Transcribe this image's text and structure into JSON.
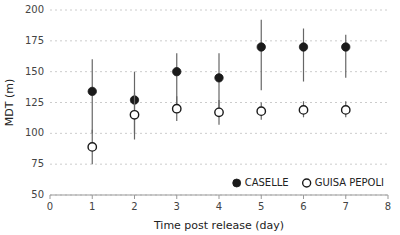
{
  "chart_data": {
    "type": "scatter",
    "x_label": "Time post release (day)",
    "y_label": "MDT (m)",
    "x": [
      1,
      2,
      3,
      4,
      5,
      6,
      7
    ],
    "series": [
      {
        "name": "CASELLE",
        "color": "#1a1a1a",
        "marker": "filled",
        "values": [
          134,
          127,
          150,
          145,
          170,
          170,
          170
        ],
        "error_low": [
          34,
          27,
          30,
          25,
          35,
          28,
          25
        ],
        "error_high": [
          26,
          23,
          15,
          20,
          22,
          15,
          10
        ]
      },
      {
        "name": "GUISA PEPOLI",
        "color": "#1a1a1a",
        "marker": "open",
        "values": [
          89,
          115,
          120,
          117,
          118,
          119,
          119
        ],
        "error_low": [
          14,
          20,
          10,
          10,
          7,
          6,
          6
        ],
        "error_high": [
          14,
          18,
          10,
          10,
          7,
          7,
          7
        ]
      }
    ],
    "xlim": [
      0,
      8
    ],
    "ylim": [
      50,
      200
    ],
    "xticks": [
      0,
      1,
      2,
      3,
      4,
      5,
      6,
      7,
      8
    ],
    "yticks": [
      50,
      75,
      100,
      125,
      150,
      175,
      200
    ],
    "grid": "y",
    "legend": "lower right"
  }
}
